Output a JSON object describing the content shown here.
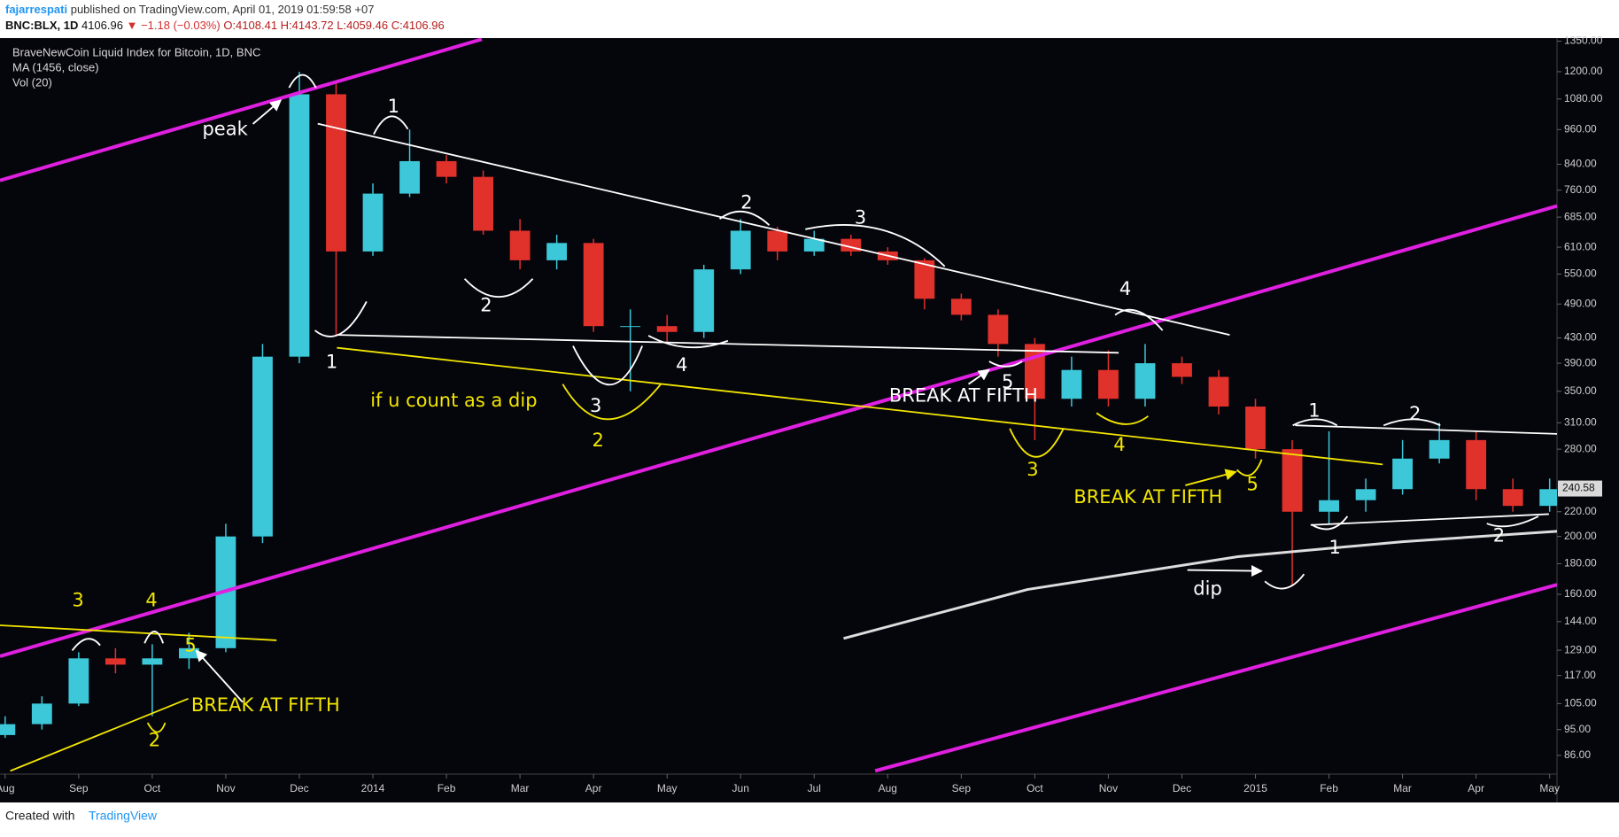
{
  "header": {
    "author": "fajarrespati",
    "published": "published on TradingView.com, April 01, 2019 01:59:58 +07",
    "symbol": "BNC:BLX, 1D",
    "price": "4106.96",
    "change": "▼ −1.18 (−0.03%)",
    "ohlc": "O:4108.41 H:4143.72 L:4059.46 C:4106.96"
  },
  "chart_data": {
    "type": "candlestick",
    "title": "BraveNewCoin Liquid Index for Bitcoin, 1D, BNC",
    "indicators": [
      "MA (1456, close)",
      "Vol (20)"
    ],
    "x": [
      0,
      0.5,
      1,
      1.5,
      2,
      2.5,
      3,
      3.5,
      4,
      4.5,
      5,
      5.5,
      6,
      6.5,
      7,
      7.5,
      8,
      8.5,
      9,
      9.5,
      10,
      10.5,
      11,
      11.5,
      12,
      12.5,
      13,
      13.5,
      14,
      14.5,
      15,
      15.5,
      16,
      16.5,
      17,
      17.5,
      18,
      18.5,
      19,
      19.5,
      20,
      20.5,
      21
    ],
    "open": [
      93,
      97,
      105,
      125,
      122,
      125,
      130,
      200,
      400,
      1100,
      600,
      750,
      850,
      800,
      650,
      580,
      620,
      450,
      450,
      440,
      560,
      650,
      600,
      630,
      600,
      580,
      500,
      470,
      420,
      340,
      380,
      340,
      390,
      370,
      330,
      280,
      220,
      230,
      240,
      270,
      290,
      240,
      225
    ],
    "high": [
      100,
      108,
      128,
      130,
      132,
      138,
      210,
      420,
      1200,
      1150,
      780,
      960,
      870,
      820,
      680,
      640,
      630,
      480,
      470,
      570,
      680,
      660,
      650,
      640,
      610,
      585,
      510,
      480,
      430,
      400,
      410,
      420,
      400,
      380,
      340,
      290,
      300,
      250,
      290,
      310,
      300,
      250,
      250
    ],
    "low": [
      92,
      95,
      104,
      118,
      100,
      120,
      128,
      195,
      390,
      435,
      590,
      740,
      780,
      640,
      560,
      560,
      440,
      350,
      420,
      430,
      550,
      580,
      590,
      590,
      570,
      480,
      460,
      400,
      290,
      330,
      330,
      330,
      360,
      320,
      270,
      165,
      210,
      220,
      235,
      265,
      230,
      220,
      220
    ],
    "close": [
      97,
      105,
      125,
      122,
      125,
      130,
      200,
      400,
      1100,
      600,
      750,
      850,
      800,
      650,
      580,
      620,
      450,
      450,
      440,
      560,
      650,
      600,
      630,
      600,
      580,
      500,
      470,
      420,
      340,
      380,
      340,
      390,
      370,
      330,
      280,
      220,
      230,
      240,
      270,
      290,
      240,
      225,
      240
    ],
    "up_color": "#3cc8d8",
    "down_color": "#e0312b",
    "xlim": [
      -0.07,
      21.1
    ],
    "xticks": [
      {
        "value": 0,
        "label": "Aug"
      },
      {
        "value": 1,
        "label": "Sep"
      },
      {
        "value": 2,
        "label": "Oct"
      },
      {
        "value": 3,
        "label": "Nov"
      },
      {
        "value": 4,
        "label": "Dec"
      },
      {
        "value": 5,
        "label": "2014"
      },
      {
        "value": 6,
        "label": "Feb"
      },
      {
        "value": 7,
        "label": "Mar"
      },
      {
        "value": 8,
        "label": "Apr"
      },
      {
        "value": 9,
        "label": "May"
      },
      {
        "value": 10,
        "label": "Jun"
      },
      {
        "value": 11,
        "label": "Jul"
      },
      {
        "value": 12,
        "label": "Aug"
      },
      {
        "value": 13,
        "label": "Sep"
      },
      {
        "value": 14,
        "label": "Oct"
      },
      {
        "value": 15,
        "label": "Nov"
      },
      {
        "value": 16,
        "label": "Dec"
      },
      {
        "value": 17,
        "label": "2015"
      },
      {
        "value": 18,
        "label": "Feb"
      },
      {
        "value": 19,
        "label": "Mar"
      },
      {
        "value": 20,
        "label": "Apr"
      },
      {
        "value": 21,
        "label": "May"
      }
    ],
    "ylim": [
      80,
      1366
    ],
    "log_scale": true,
    "yticks": [
      {
        "value": 1350,
        "label": "1350.00"
      },
      {
        "value": 1200,
        "label": "1200.00"
      },
      {
        "value": 1080,
        "label": "1080.00"
      },
      {
        "value": 960,
        "label": "960.00"
      },
      {
        "value": 840,
        "label": "840.00"
      },
      {
        "value": 760,
        "label": "760.00"
      },
      {
        "value": 685,
        "label": "685.00"
      },
      {
        "value": 610,
        "label": "610.00"
      },
      {
        "value": 550,
        "label": "550.00"
      },
      {
        "value": 490,
        "label": "490.00"
      },
      {
        "value": 430,
        "label": "430.00"
      },
      {
        "value": 390,
        "label": "390.00"
      },
      {
        "value": 350,
        "label": "350.00"
      },
      {
        "value": 310,
        "label": "310.00"
      },
      {
        "value": 280,
        "label": "280.00"
      },
      {
        "value": 220,
        "label": "220.00"
      },
      {
        "value": 200,
        "label": "200.00"
      },
      {
        "value": 180,
        "label": "180.00"
      },
      {
        "value": 160,
        "label": "160.00"
      },
      {
        "value": 144,
        "label": "144.00"
      },
      {
        "value": 129,
        "label": "129.00"
      },
      {
        "value": 117,
        "label": "117.00"
      },
      {
        "value": 105,
        "label": "105.00"
      },
      {
        "value": 95,
        "label": "95.00"
      },
      {
        "value": 86,
        "label": "86.00"
      }
    ],
    "last_price": 240.58,
    "ma": {
      "color": "#dddddd",
      "x": [
        11.4,
        13.9,
        16.76,
        19,
        21.1
      ],
      "values": [
        135,
        163,
        185,
        196,
        204
      ]
    },
    "trendlines": [
      {
        "color": "#e020e0",
        "x": [
          -0.07,
          6.48
        ],
        "y": [
          789,
          1360
        ]
      },
      {
        "color": "#e020e0",
        "x": [
          -0.07,
          21.1
        ],
        "y": [
          126,
          715
        ]
      },
      {
        "color": "#e020e0",
        "x": [
          11.83,
          21.1
        ],
        "y": [
          81,
          166
        ]
      },
      {
        "color": "#ffffff",
        "x": [
          4.25,
          16.65
        ],
        "y": [
          982,
          435
        ]
      },
      {
        "color": "#ffffff",
        "x": [
          4.51,
          15.14
        ],
        "y": [
          435,
          406
        ]
      },
      {
        "color": "#ffffff",
        "x": [
          17.54,
          21.1
        ],
        "y": [
          307,
          297
        ]
      },
      {
        "color": "#ffffff",
        "x": [
          17.75,
          20.99
        ],
        "y": [
          209,
          218
        ]
      },
      {
        "color": "#f2e600",
        "x": [
          4.51,
          18.73
        ],
        "y": [
          414,
          264
        ]
      },
      {
        "color": "#f2e600",
        "x": [
          -0.07,
          3.69
        ],
        "y": [
          142,
          134
        ]
      },
      {
        "color": "#f2e600",
        "x": [
          0.07,
          2.49
        ],
        "y": [
          81,
          107
        ]
      }
    ],
    "annotations": [
      {
        "text": "peak",
        "x": 2.99,
        "y": 959,
        "color": "#ffffff"
      },
      {
        "text": "1",
        "x": 5.28,
        "y": 1046,
        "color": "#ffffff"
      },
      {
        "text": "1",
        "x": 4.44,
        "y": 391,
        "color": "#ffffff"
      },
      {
        "text": "2",
        "x": 6.54,
        "y": 486,
        "color": "#ffffff"
      },
      {
        "text": "3",
        "x": 8.03,
        "y": 330,
        "color": "#ffffff"
      },
      {
        "text": "2",
        "x": 8.06,
        "y": 289,
        "color": "#f2e600"
      },
      {
        "text": "4",
        "x": 9.2,
        "y": 386,
        "color": "#ffffff"
      },
      {
        "text": "if u count as a dip",
        "x": 6.1,
        "y": 337,
        "color": "#f2e600"
      },
      {
        "text": "2",
        "x": 10.08,
        "y": 722,
        "color": "#ffffff"
      },
      {
        "text": "3",
        "x": 11.63,
        "y": 682,
        "color": "#ffffff"
      },
      {
        "text": "4",
        "x": 15.23,
        "y": 518,
        "color": "#ffffff"
      },
      {
        "text": "5",
        "x": 13.63,
        "y": 362,
        "color": "#ffffff"
      },
      {
        "text": "BREAK AT FIFTH",
        "x": 13.03,
        "y": 343,
        "color": "#ffffff"
      },
      {
        "text": "3",
        "x": 13.97,
        "y": 258,
        "color": "#f2e600"
      },
      {
        "text": "4",
        "x": 15.15,
        "y": 284,
        "color": "#f2e600"
      },
      {
        "text": "5",
        "x": 16.96,
        "y": 244,
        "color": "#f2e600"
      },
      {
        "text": "BREAK AT FIFTH",
        "x": 15.54,
        "y": 232,
        "color": "#f2e600"
      },
      {
        "text": "dip",
        "x": 16.35,
        "y": 163,
        "color": "#ffffff"
      },
      {
        "text": "1",
        "x": 17.8,
        "y": 324,
        "color": "#ffffff"
      },
      {
        "text": "2",
        "x": 19.17,
        "y": 320,
        "color": "#ffffff"
      },
      {
        "text": "1",
        "x": 18.08,
        "y": 191,
        "color": "#ffffff"
      },
      {
        "text": "2",
        "x": 20.31,
        "y": 200,
        "color": "#ffffff"
      },
      {
        "text": "3",
        "x": 0.99,
        "y": 156,
        "color": "#f2e600"
      },
      {
        "text": "4",
        "x": 1.99,
        "y": 156,
        "color": "#f2e600"
      },
      {
        "text": "5",
        "x": 2.52,
        "y": 131,
        "color": "#f2e600"
      },
      {
        "text": "2",
        "x": 2.03,
        "y": 91,
        "color": "#f2e600"
      },
      {
        "text": "BREAK AT FIFTH",
        "x": 3.54,
        "y": 104,
        "color": "#f2e600"
      }
    ]
  },
  "footer": {
    "created": "Created with",
    "brand": "TradingView"
  }
}
